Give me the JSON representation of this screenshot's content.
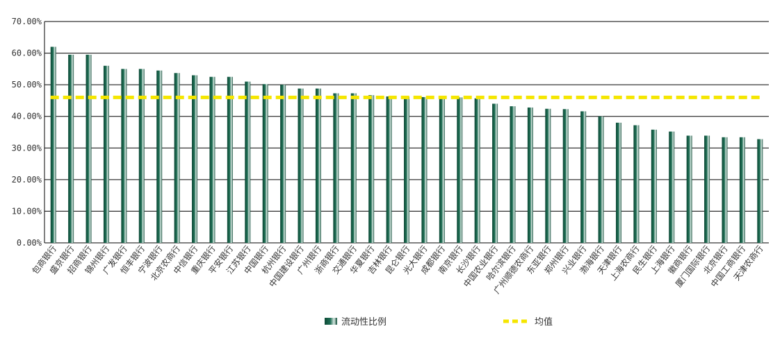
{
  "chart_data": {
    "type": "bar",
    "categories": [
      "包商银行",
      "盛京银行",
      "招商银行",
      "锦州银行",
      "广发银行",
      "恒丰银行",
      "宁波银行",
      "北京农商行",
      "中信银行",
      "重庆银行",
      "平安银行",
      "江苏银行",
      "中国银行",
      "杭州银行",
      "中国建设银行",
      "广州银行",
      "浙商银行",
      "交通银行",
      "华夏银行",
      "吉林银行",
      "昆仑银行",
      "光大银行",
      "成都银行",
      "南京银行",
      "长沙银行",
      "中国农业银行",
      "哈尔滨银行",
      "广州顺德农商行",
      "东亚银行",
      "郑州银行",
      "兴业银行",
      "渤海银行",
      "天津银行",
      "上海农商行",
      "民生银行",
      "上海银行",
      "徽商银行",
      "厦门国际银行",
      "北京银行",
      "中国工商银行",
      "天津农商行"
    ],
    "series": [
      {
        "name": "流动性比例",
        "type": "bar",
        "values": [
          62.0,
          59.5,
          59.5,
          56.0,
          55.0,
          55.0,
          54.5,
          53.7,
          53.0,
          52.5,
          52.5,
          51.0,
          50.2,
          50.0,
          48.8,
          48.8,
          47.3,
          47.3,
          46.7,
          46.3,
          46.2,
          46.1,
          46.0,
          46.0,
          45.7,
          44.0,
          43.2,
          42.8,
          42.4,
          42.3,
          41.6,
          40.0,
          38.0,
          37.2,
          35.8,
          35.2,
          33.9,
          33.9,
          33.4,
          33.4,
          32.8
        ]
      },
      {
        "name": "均值",
        "type": "line",
        "value": 46.0
      }
    ],
    "ylim": [
      0,
      70
    ],
    "yticks": [
      "0.00%",
      "10.00%",
      "20.00%",
      "30.00%",
      "40.00%",
      "50.00%",
      "60.00%",
      "70.00%"
    ],
    "grid": true,
    "legend_position": "bottom"
  },
  "colors": {
    "bar_dark": "#0e4a37",
    "bar_mid": "#1f6f55",
    "bar_light": "#d9e8e2",
    "mean_line": "#f5e600",
    "grid": "#000000"
  }
}
